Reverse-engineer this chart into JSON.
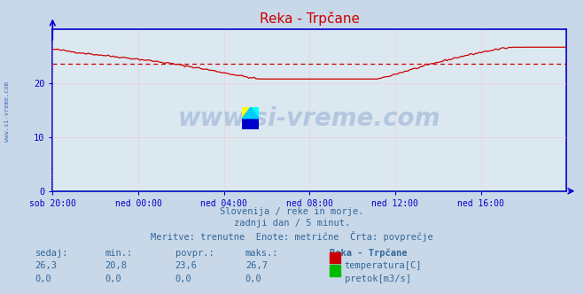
{
  "title": "Reka - Trpčane",
  "bg_color": "#c8d8e8",
  "plot_bg_color": "#dce8f0",
  "grid_color": "#ffb0b0",
  "grid_style": "dotted",
  "axis_color": "#0000cc",
  "xlabel_ticks": [
    "sob 20:00",
    "ned 00:00",
    "ned 04:00",
    "ned 08:00",
    "ned 12:00",
    "ned 16:00"
  ],
  "xtick_positions": [
    0,
    48,
    96,
    144,
    192,
    240
  ],
  "ylabel_ticks": [
    0,
    10,
    20
  ],
  "ylim": [
    0,
    30
  ],
  "xlim": [
    0,
    288
  ],
  "avg_value": 23.6,
  "min_value": 20.8,
  "max_value": 26.7,
  "current_value": 26.3,
  "temperature_color": "#cc0000",
  "avg_line_color": "#cc0000",
  "flow_color": "#00bb00",
  "watermark_color": "#2255aa",
  "tick_color": "#336699",
  "subtitle_lines": [
    "Slovenija / reke in morje.",
    "zadnji dan / 5 minut.",
    "Meritve: trenutne  Enote: metrične  Črta: povprečje"
  ],
  "table_headers": [
    "sedaj:",
    "min.:",
    "povpr.:",
    "maks.:",
    "Reka - Trpčane"
  ],
  "table_row1": [
    "26,3",
    "20,8",
    "23,6",
    "26,7",
    "temperatura[C]"
  ],
  "table_row2": [
    "0,0",
    "0,0",
    "0,0",
    "0,0",
    "pretok[m3/s]"
  ]
}
